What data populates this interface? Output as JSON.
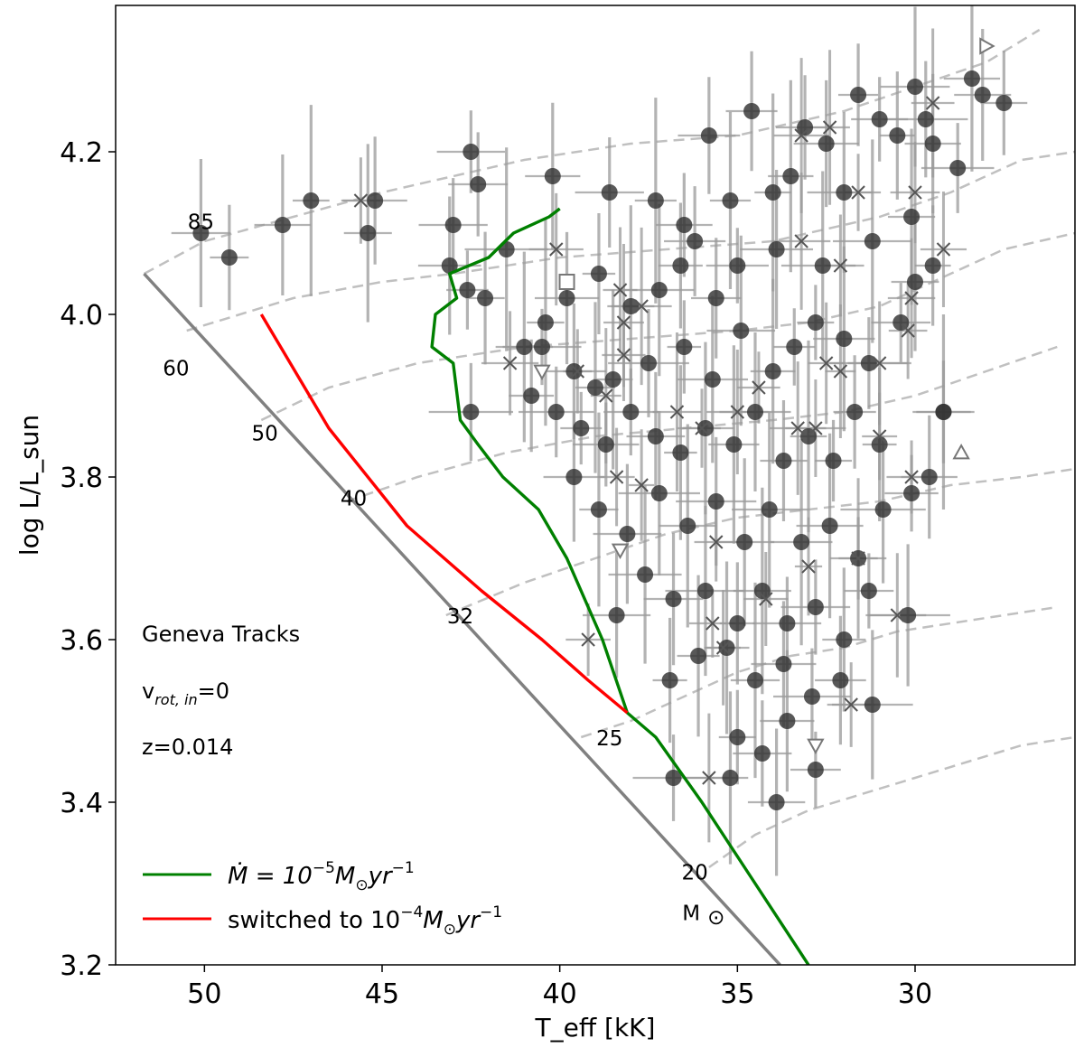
{
  "chart_data": {
    "type": "scatter",
    "title": "",
    "xlabel": "T_eff [kK]",
    "ylabel": "log L/L_sun",
    "xlim": [
      52.5,
      25.5
    ],
    "ylim": [
      3.2,
      4.38
    ],
    "x_reversed": true,
    "x_ticks": [
      50,
      45,
      40,
      35,
      30
    ],
    "y_ticks": [
      3.2,
      3.4,
      3.6,
      3.8,
      4.0,
      4.2
    ],
    "x_tick_labels": [
      "50",
      "45",
      "40",
      "35",
      "30"
    ],
    "y_tick_labels": [
      "3.2",
      "3.4",
      "3.6",
      "3.8",
      "4.0",
      "4.2"
    ],
    "annotations": [
      "Geneva Tracks",
      "v",
      "rot, in",
      "=0",
      "z=0.014"
    ],
    "mass_labels": [
      {
        "text": "85",
        "x": 50.1,
        "y": 4.105
      },
      {
        "text": "60",
        "x": 50.8,
        "y": 3.925
      },
      {
        "text": "50",
        "x": 48.3,
        "y": 3.845
      },
      {
        "text": "40",
        "x": 45.8,
        "y": 3.765
      },
      {
        "text": "32",
        "x": 42.8,
        "y": 3.62
      },
      {
        "text": "25",
        "x": 38.6,
        "y": 3.47
      },
      {
        "text": "20",
        "x": 36.2,
        "y": 3.305
      },
      {
        "text": "M",
        "x": 36.3,
        "y": 3.255
      },
      {
        "text": "⊙",
        "x": 35.6,
        "y": 3.25
      }
    ],
    "zams": {
      "name": "ZAMS",
      "color": "#808080",
      "points": [
        [
          51.7,
          4.05
        ],
        [
          33.8,
          3.2
        ]
      ]
    },
    "legend": [
      {
        "label": "Ṁ = 10",
        "exponent": "−5",
        "unit": "M",
        "unit_sub": "⊙",
        "unit_tail": "yr",
        "unit_exp": "−1",
        "color": "#008000"
      },
      {
        "label": "switched to 10",
        "exponent": "−4",
        "unit": "M",
        "unit_sub": "⊙",
        "unit_tail": "yr",
        "unit_exp": "−1",
        "color": "#ff0000"
      }
    ],
    "series": [
      {
        "name": "Mdot 1e-5 track",
        "color": "#008000",
        "points": [
          [
            33.0,
            3.2
          ],
          [
            34.5,
            3.3
          ],
          [
            36.0,
            3.4
          ],
          [
            37.3,
            3.48
          ],
          [
            38.1,
            3.51
          ],
          [
            38.8,
            3.6
          ],
          [
            39.8,
            3.7
          ],
          [
            40.6,
            3.76
          ],
          [
            41.6,
            3.8
          ],
          [
            42.3,
            3.84
          ],
          [
            42.8,
            3.87
          ],
          [
            43.0,
            3.94
          ],
          [
            43.6,
            3.96
          ],
          [
            43.5,
            4.0
          ],
          [
            42.9,
            4.02
          ],
          [
            43.1,
            4.05
          ],
          [
            42.0,
            4.07
          ],
          [
            41.3,
            4.1
          ],
          [
            40.3,
            4.12
          ],
          [
            40.0,
            4.13
          ]
        ]
      },
      {
        "name": "switched to 1e-4 track",
        "color": "#ff0000",
        "points": [
          [
            48.4,
            4.0
          ],
          [
            46.5,
            3.86
          ],
          [
            44.3,
            3.74
          ],
          [
            42.2,
            3.66
          ],
          [
            40.5,
            3.6
          ],
          [
            39.2,
            3.55
          ],
          [
            38.1,
            3.51
          ]
        ]
      },
      {
        "name": "Geneva tracks",
        "color": "#c0c0c0",
        "dash": true,
        "tracks": [
          [
            [
              51.7,
              4.05
            ],
            [
              50.0,
              4.09
            ],
            [
              47.5,
              4.12
            ],
            [
              45.0,
              4.15
            ],
            [
              43.0,
              4.17
            ],
            [
              41.0,
              4.19
            ],
            [
              38.0,
              4.21
            ],
            [
              35.0,
              4.22
            ],
            [
              32.0,
              4.25
            ],
            [
              30.0,
              4.28
            ],
            [
              28.0,
              4.31
            ],
            [
              26.5,
              4.35
            ]
          ],
          [
            [
              50.5,
              3.98
            ],
            [
              47.5,
              4.02
            ],
            [
              45.0,
              4.04
            ],
            [
              43.0,
              4.05
            ],
            [
              40.0,
              4.07
            ],
            [
              37.0,
              4.08
            ],
            [
              34.0,
              4.09
            ],
            [
              31.0,
              4.12
            ],
            [
              29.0,
              4.15
            ],
            [
              27.0,
              4.19
            ],
            [
              25.5,
              4.2
            ]
          ],
          [
            [
              48.4,
              3.87
            ],
            [
              46.5,
              3.91
            ],
            [
              44.0,
              3.94
            ],
            [
              41.0,
              3.96
            ],
            [
              38.0,
              3.97
            ],
            [
              35.0,
              3.98
            ],
            [
              33.0,
              3.99
            ],
            [
              31.0,
              4.01
            ],
            [
              29.0,
              4.05
            ],
            [
              27.5,
              4.08
            ],
            [
              25.5,
              4.1
            ]
          ],
          [
            [
              46.0,
              3.77
            ],
            [
              44.0,
              3.8
            ],
            [
              41.5,
              3.83
            ],
            [
              39.0,
              3.85
            ],
            [
              36.5,
              3.86
            ],
            [
              34.0,
              3.87
            ],
            [
              32.0,
              3.88
            ],
            [
              30.0,
              3.9
            ],
            [
              28.0,
              3.93
            ],
            [
              26.0,
              3.96
            ]
          ],
          [
            [
              43.2,
              3.63
            ],
            [
              41.0,
              3.67
            ],
            [
              39.0,
              3.7
            ],
            [
              37.0,
              3.73
            ],
            [
              35.0,
              3.75
            ],
            [
              33.0,
              3.76
            ],
            [
              31.0,
              3.77
            ],
            [
              29.0,
              3.79
            ],
            [
              27.0,
              3.8
            ],
            [
              25.5,
              3.81
            ]
          ],
          [
            [
              39.4,
              3.48
            ],
            [
              38.0,
              3.5
            ],
            [
              36.5,
              3.53
            ],
            [
              35.0,
              3.56
            ],
            [
              33.5,
              3.58
            ],
            [
              32.0,
              3.59
            ],
            [
              30.5,
              3.61
            ],
            [
              29.0,
              3.62
            ],
            [
              27.5,
              3.63
            ],
            [
              26.0,
              3.64
            ]
          ],
          [
            [
              35.8,
              3.32
            ],
            [
              34.5,
              3.36
            ],
            [
              33.0,
              3.39
            ],
            [
              31.5,
              3.41
            ],
            [
              30.0,
              3.43
            ],
            [
              28.5,
              3.45
            ],
            [
              27.0,
              3.47
            ],
            [
              25.5,
              3.48
            ]
          ]
        ]
      }
    ],
    "stars": {
      "symbol": "circle",
      "color": "#333333",
      "points": [
        [
          50.1,
          4.1
        ],
        [
          49.3,
          4.07
        ],
        [
          47.8,
          4.11
        ],
        [
          47.0,
          4.14
        ],
        [
          45.2,
          4.14
        ],
        [
          45.4,
          4.1
        ],
        [
          42.5,
          4.2
        ],
        [
          42.3,
          4.16
        ],
        [
          43.0,
          4.11
        ],
        [
          43.1,
          4.06
        ],
        [
          42.6,
          4.03
        ],
        [
          41.5,
          4.08
        ],
        [
          42.1,
          4.02
        ],
        [
          42.5,
          3.88
        ],
        [
          40.2,
          4.17
        ],
        [
          38.6,
          4.15
        ],
        [
          37.3,
          4.14
        ],
        [
          36.5,
          4.11
        ],
        [
          35.8,
          4.22
        ],
        [
          35.2,
          4.14
        ],
        [
          34.6,
          4.25
        ],
        [
          34.0,
          4.15
        ],
        [
          33.5,
          4.17
        ],
        [
          33.1,
          4.23
        ],
        [
          32.5,
          4.21
        ],
        [
          32.0,
          4.15
        ],
        [
          31.6,
          4.27
        ],
        [
          31.0,
          4.24
        ],
        [
          30.5,
          4.22
        ],
        [
          30.0,
          4.28
        ],
        [
          29.7,
          4.24
        ],
        [
          29.5,
          4.21
        ],
        [
          28.4,
          4.29
        ],
        [
          28.1,
          4.27
        ],
        [
          27.5,
          4.26
        ],
        [
          28.8,
          4.18
        ],
        [
          30.1,
          4.12
        ],
        [
          31.2,
          4.09
        ],
        [
          32.6,
          4.06
        ],
        [
          33.9,
          4.08
        ],
        [
          35.0,
          4.06
        ],
        [
          35.6,
          4.02
        ],
        [
          36.6,
          4.06
        ],
        [
          37.2,
          4.03
        ],
        [
          38.0,
          4.01
        ],
        [
          38.9,
          4.05
        ],
        [
          39.8,
          4.02
        ],
        [
          40.4,
          3.99
        ],
        [
          41.0,
          3.96
        ],
        [
          39.6,
          3.93
        ],
        [
          38.5,
          3.92
        ],
        [
          37.5,
          3.94
        ],
        [
          36.5,
          3.96
        ],
        [
          35.7,
          3.92
        ],
        [
          34.9,
          3.98
        ],
        [
          34.0,
          3.93
        ],
        [
          33.4,
          3.96
        ],
        [
          32.8,
          3.99
        ],
        [
          32.0,
          3.97
        ],
        [
          31.3,
          3.94
        ],
        [
          30.4,
          3.99
        ],
        [
          30.0,
          4.04
        ],
        [
          29.5,
          4.06
        ],
        [
          40.8,
          3.9
        ],
        [
          40.1,
          3.88
        ],
        [
          39.4,
          3.86
        ],
        [
          38.7,
          3.84
        ],
        [
          38.0,
          3.88
        ],
        [
          37.3,
          3.85
        ],
        [
          36.6,
          3.83
        ],
        [
          35.9,
          3.86
        ],
        [
          35.1,
          3.84
        ],
        [
          34.5,
          3.88
        ],
        [
          33.7,
          3.82
        ],
        [
          33.0,
          3.85
        ],
        [
          32.3,
          3.82
        ],
        [
          31.7,
          3.88
        ],
        [
          31.0,
          3.84
        ],
        [
          29.6,
          3.8
        ],
        [
          29.2,
          3.88
        ],
        [
          39.6,
          3.8
        ],
        [
          38.9,
          3.76
        ],
        [
          38.1,
          3.73
        ],
        [
          37.2,
          3.78
        ],
        [
          36.4,
          3.74
        ],
        [
          35.6,
          3.77
        ],
        [
          34.8,
          3.72
        ],
        [
          34.1,
          3.76
        ],
        [
          33.2,
          3.72
        ],
        [
          32.4,
          3.74
        ],
        [
          31.6,
          3.7
        ],
        [
          30.9,
          3.76
        ],
        [
          38.4,
          3.63
        ],
        [
          37.6,
          3.68
        ],
        [
          36.8,
          3.65
        ],
        [
          35.9,
          3.66
        ],
        [
          35.0,
          3.62
        ],
        [
          34.3,
          3.66
        ],
        [
          33.6,
          3.62
        ],
        [
          32.8,
          3.64
        ],
        [
          32.0,
          3.6
        ],
        [
          31.3,
          3.66
        ],
        [
          30.2,
          3.63
        ],
        [
          36.9,
          3.55
        ],
        [
          36.1,
          3.58
        ],
        [
          35.3,
          3.59
        ],
        [
          34.5,
          3.55
        ],
        [
          33.7,
          3.57
        ],
        [
          32.9,
          3.53
        ],
        [
          32.1,
          3.55
        ],
        [
          31.2,
          3.52
        ],
        [
          35.0,
          3.48
        ],
        [
          34.3,
          3.46
        ],
        [
          33.6,
          3.5
        ],
        [
          32.8,
          3.44
        ],
        [
          35.2,
          3.43
        ],
        [
          33.9,
          3.4
        ],
        [
          36.8,
          3.43
        ],
        [
          29.2,
          3.88
        ],
        [
          30.1,
          3.78
        ],
        [
          39.0,
          3.91
        ],
        [
          40.5,
          3.96
        ],
        [
          36.2,
          4.09
        ]
      ]
    },
    "x_marks": [
      [
        45.6,
        4.14
      ],
      [
        40.1,
        4.08
      ],
      [
        38.3,
        4.03
      ],
      [
        37.7,
        4.01
      ],
      [
        38.2,
        3.99
      ],
      [
        41.4,
        3.94
      ],
      [
        39.5,
        3.93
      ],
      [
        38.7,
        3.9
      ],
      [
        36.7,
        3.88
      ],
      [
        38.4,
        3.8
      ],
      [
        36.0,
        3.86
      ],
      [
        35.0,
        3.88
      ],
      [
        33.3,
        3.86
      ],
      [
        32.5,
        3.94
      ],
      [
        32.1,
        3.93
      ],
      [
        31.0,
        3.94
      ],
      [
        30.2,
        3.98
      ],
      [
        30.1,
        4.02
      ],
      [
        32.1,
        4.06
      ],
      [
        33.2,
        4.09
      ],
      [
        29.2,
        4.08
      ],
      [
        30.0,
        4.15
      ],
      [
        31.6,
        4.15
      ],
      [
        32.4,
        4.23
      ],
      [
        33.2,
        4.22
      ],
      [
        29.5,
        4.26
      ],
      [
        34.4,
        3.91
      ],
      [
        32.8,
        3.86
      ],
      [
        31.0,
        3.85
      ],
      [
        33.0,
        3.69
      ],
      [
        31.6,
        3.7
      ],
      [
        30.5,
        3.63
      ],
      [
        35.7,
        3.62
      ],
      [
        35.6,
        3.72
      ],
      [
        34.2,
        3.65
      ],
      [
        35.4,
        3.59
      ],
      [
        31.8,
        3.52
      ],
      [
        35.8,
        3.43
      ],
      [
        39.2,
        3.6
      ],
      [
        37.7,
        3.79
      ],
      [
        38.2,
        3.95
      ],
      [
        30.1,
        3.8
      ]
    ],
    "open_markers": [
      {
        "marker": "square",
        "x": 39.8,
        "y": 4.04
      },
      {
        "marker": "triangle-down",
        "x": 40.5,
        "y": 3.93
      },
      {
        "marker": "triangle-down",
        "x": 38.3,
        "y": 3.71
      },
      {
        "marker": "triangle-down",
        "x": 32.8,
        "y": 3.47
      },
      {
        "marker": "triangle-up",
        "x": 28.7,
        "y": 3.83
      },
      {
        "marker": "triangle-right",
        "x": 28.0,
        "y": 4.33
      }
    ]
  }
}
